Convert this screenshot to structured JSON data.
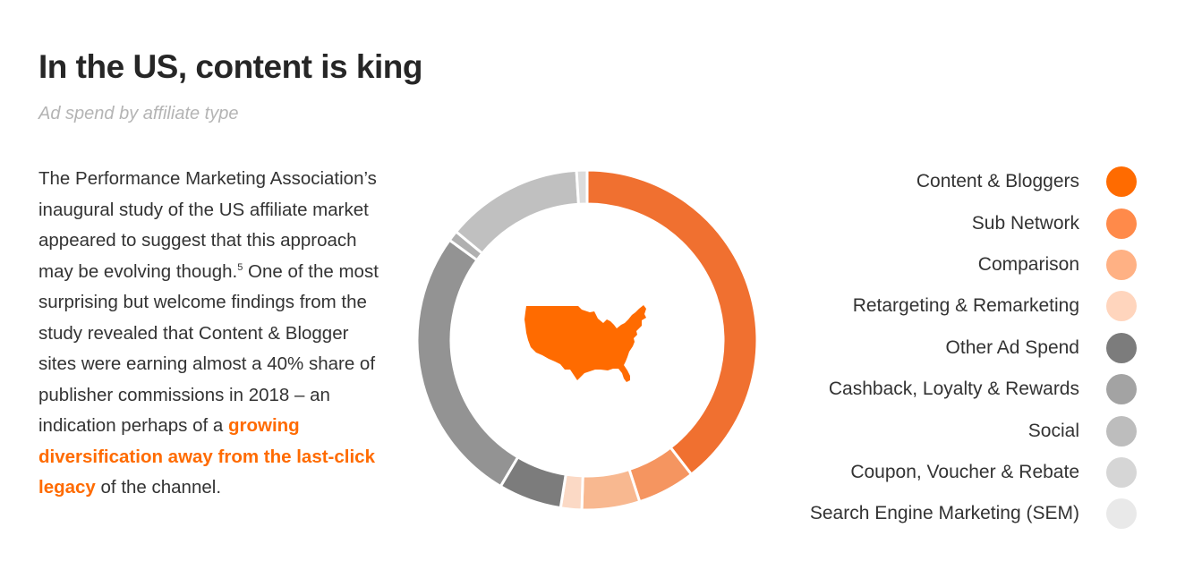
{
  "header": {
    "title": "In the US, content is king",
    "subtitle": "Ad spend by affiliate type"
  },
  "body": {
    "text_before": "The Performance Marketing Association’s inaugural study of the US affiliate market appeared to suggest that this approach may be evolving though.",
    "footnote": "5",
    "text_middle": " One of the most surprising but welcome findings from the study revealed that Content & Blogger sites were earning almost a 40% share of publisher commissions in 2018 – an indication perhaps of a ",
    "highlight": "growing diversification away from the last-click legacy",
    "text_after": " of the channel."
  },
  "center_icon": "us-map-icon",
  "chart_data": {
    "type": "pie",
    "donut": true,
    "categories": [
      "Content & Bloggers",
      "Sub Network",
      "Comparison",
      "Retargeting & Remarketing",
      "Other Ad Spend",
      "Cashback, Loyalty & Rewards",
      "Social",
      "Coupon, Voucher & Rebate",
      "Search Engine Marketing (SEM)"
    ],
    "values": [
      39.5,
      5.5,
      5.5,
      2,
      6,
      26.5,
      1,
      13,
      1
    ],
    "colors": [
      "#f07030",
      "#f59560",
      "#f8b890",
      "#fbd9c5",
      "#7c7c7c",
      "#939393",
      "#b0b0b0",
      "#c0c0c0",
      "#dcdcdc"
    ],
    "legend_colors": [
      "#ff6b00",
      "#ff8a4a",
      "#ffb184",
      "#ffd5bd",
      "#7c7c7c",
      "#a3a3a3",
      "#bdbdbd",
      "#d6d6d6",
      "#e9e9e9"
    ],
    "legend": "right",
    "unit": "%"
  }
}
